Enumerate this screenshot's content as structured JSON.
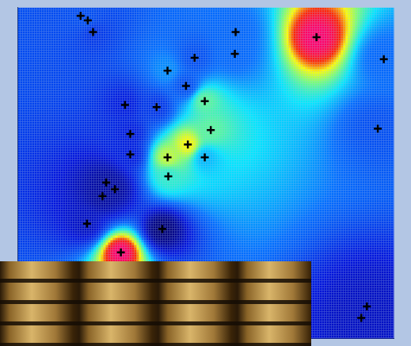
{
  "chart_data": {
    "type": "scatter",
    "x": [
      16.7,
      18.6,
      20.0,
      57.9,
      57.7,
      47.0,
      39.8,
      44.7,
      28.5,
      36.9,
      49.7,
      51.3,
      29.9,
      45.2,
      29.9,
      39.8,
      49.7,
      40.0,
      23.5,
      25.8,
      22.5,
      18.4,
      38.4,
      27.4,
      79.4,
      97.3,
      95.7,
      92.8,
      91.3
    ],
    "y": [
      97.5,
      96.1,
      92.6,
      92.6,
      86.0,
      84.8,
      80.9,
      76.3,
      70.6,
      69.9,
      71.7,
      63.0,
      61.8,
      58.6,
      55.6,
      54.7,
      54.7,
      49.0,
      47.1,
      45.1,
      43.0,
      34.7,
      33.1,
      26.0,
      91.0,
      84.4,
      63.4,
      9.7,
      6.2
    ],
    "values": [
      3.5,
      3.5,
      3,
      4,
      4,
      3.5,
      4.5,
      3.5,
      2.5,
      3,
      6.5,
      6.5,
      2.5,
      8,
      2.5,
      7.5,
      5,
      6,
      1.5,
      1.5,
      1.5,
      2,
      1,
      10,
      10,
      4,
      3.5,
      2,
      2
    ],
    "marker": "plus",
    "color": "#000000",
    "xlim": [
      0,
      100
    ],
    "ylim": [
      0,
      100
    ],
    "tick_labels": false,
    "grid": false
  }
}
